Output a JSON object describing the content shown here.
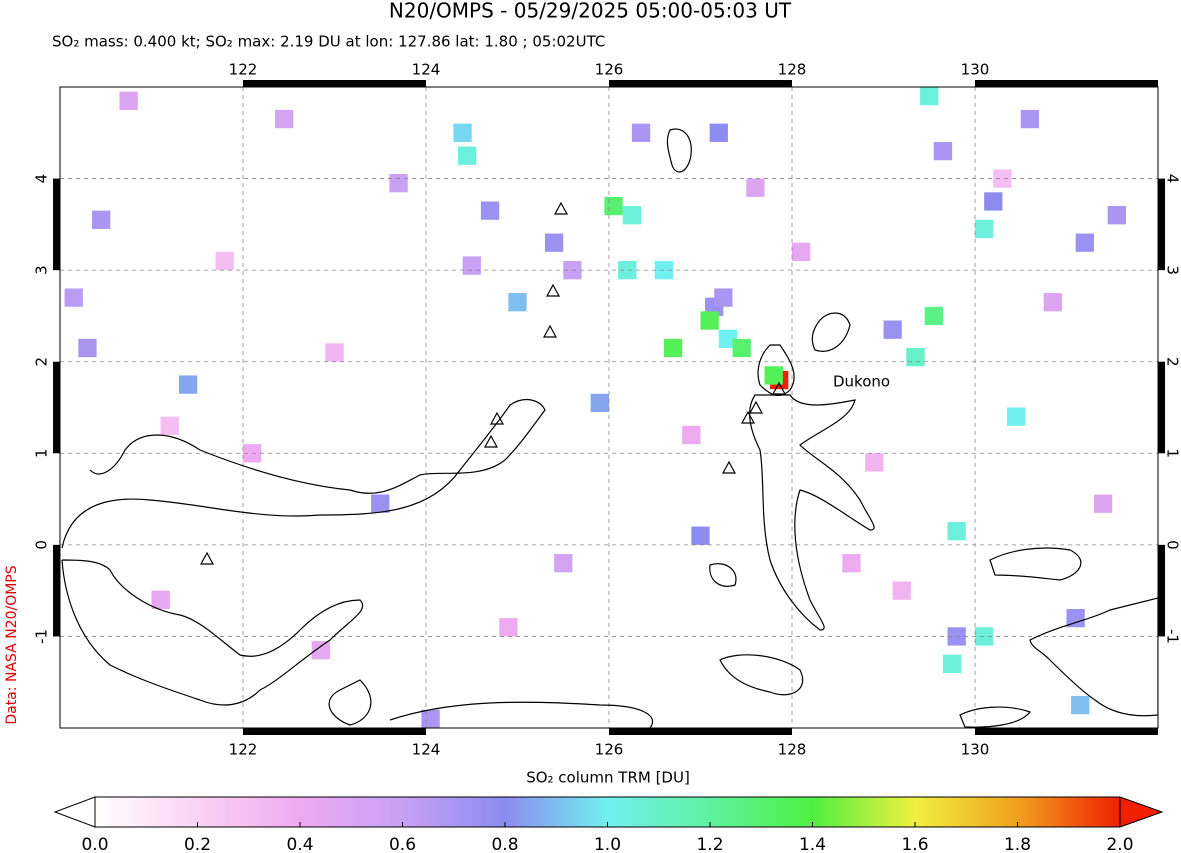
{
  "chart_data": {
    "type": "map",
    "title": "N20/OMPS - 05/29/2025 05:00-05:03 UT",
    "subtitle": "SO₂ mass: 0.400 kt; SO₂ max: 2.19 DU at lon: 127.86 lat: 1.80 ; 05:02UTC",
    "annotation": "Dukono",
    "credit": "Data: NASA N20/OMPS",
    "colorbar_label": "SO₂ column TRM [DU]",
    "xlim": [
      120,
      132
    ],
    "ylim": [
      -2,
      5
    ],
    "xticks": [
      122,
      124,
      126,
      128,
      130
    ],
    "yticks": [
      -1,
      0,
      1,
      2,
      3,
      4
    ],
    "grid": true,
    "clim": [
      0,
      2
    ],
    "cticks": [
      {
        "value": 0,
        "label": "0.0"
      },
      {
        "value": 0.2,
        "label": "0.2"
      },
      {
        "value": 0.4,
        "label": "0.4"
      },
      {
        "value": 0.6,
        "label": "0.6"
      },
      {
        "value": 0.8,
        "label": "0.8"
      },
      {
        "value": 1,
        "label": "1.0"
      },
      {
        "value": 1.2,
        "label": "1.2"
      },
      {
        "value": 1.4,
        "label": "1.4"
      },
      {
        "value": 1.6,
        "label": "1.6"
      },
      {
        "value": 1.8,
        "label": "1.8"
      },
      {
        "value": 2,
        "label": "2.0"
      }
    ],
    "colormap": [
      "#ffffff",
      "#fad2f4",
      "#eeaaf0",
      "#c8a0f4",
      "#8c8cf0",
      "#70f0f0",
      "#60f0a0",
      "#50f040",
      "#f0f040",
      "#f0a020",
      "#f02000"
    ],
    "x": [
      127.86,
      127.8,
      127.15,
      127.1,
      127.3,
      127.45,
      126.7,
      127.25,
      129.5,
      124.45,
      124.4,
      126.05,
      126.25,
      125.4,
      126.6,
      126.2,
      125.0,
      129.55,
      129.35,
      129.1,
      130.1,
      130.2,
      130.45,
      129.8,
      130.1,
      129.75,
      129.8,
      131.15,
      131.1,
      121.4,
      131.2,
      131.55,
      129.65,
      130.6,
      120.45,
      120.15,
      120.3,
      123.5,
      124.05,
      125.6,
      125.9,
      127.0,
      127.2,
      126.35,
      124.7,
      124.5,
      123.7,
      122.45,
      120.75,
      121.1,
      122.85,
      128.65,
      131.4,
      125.5,
      122.1,
      130.85,
      128.1,
      123.0,
      121.8,
      126.9,
      128.9,
      130.3,
      124.9,
      121.2,
      127.6,
      129.2
    ],
    "y": [
      1.8,
      1.85,
      2.6,
      2.45,
      2.25,
      2.15,
      2.15,
      2.7,
      4.9,
      4.25,
      4.5,
      3.7,
      3.6,
      3.3,
      3.0,
      3.0,
      2.65,
      2.5,
      2.05,
      2.35,
      3.45,
      3.75,
      1.4,
      0.15,
      -1.0,
      -1.3,
      -1.0,
      -1.75,
      -0.8,
      1.75,
      3.3,
      3.6,
      4.3,
      4.65,
      3.55,
      2.7,
      2.15,
      0.45,
      -1.9,
      3.0,
      1.55,
      0.1,
      4.5,
      4.5,
      3.65,
      3.05,
      3.95,
      4.65,
      4.85,
      -0.6,
      -1.15,
      -0.2,
      0.45,
      -0.2,
      1.0,
      2.65,
      3.2,
      2.1,
      3.1,
      1.2,
      0.9,
      4.0,
      -0.9,
      1.3,
      3.9,
      -0.5
    ],
    "values": [
      2.19,
      1.35,
      0.75,
      1.35,
      1.0,
      1.3,
      1.35,
      0.7,
      1.05,
      1.05,
      0.95,
      1.3,
      1.05,
      0.75,
      1.0,
      1.05,
      0.9,
      1.25,
      1.1,
      0.75,
      1.05,
      0.8,
      1.0,
      1.05,
      1.05,
      1.05,
      0.75,
      0.9,
      0.75,
      0.85,
      0.75,
      0.7,
      0.7,
      0.7,
      0.7,
      0.65,
      0.7,
      0.75,
      0.7,
      0.6,
      0.85,
      0.8,
      0.8,
      0.7,
      0.75,
      0.6,
      0.6,
      0.55,
      0.5,
      0.45,
      0.45,
      0.4,
      0.5,
      0.55,
      0.4,
      0.5,
      0.45,
      0.35,
      0.3,
      0.4,
      0.35,
      0.3,
      0.4,
      0.3,
      0.5,
      0.35
    ]
  }
}
